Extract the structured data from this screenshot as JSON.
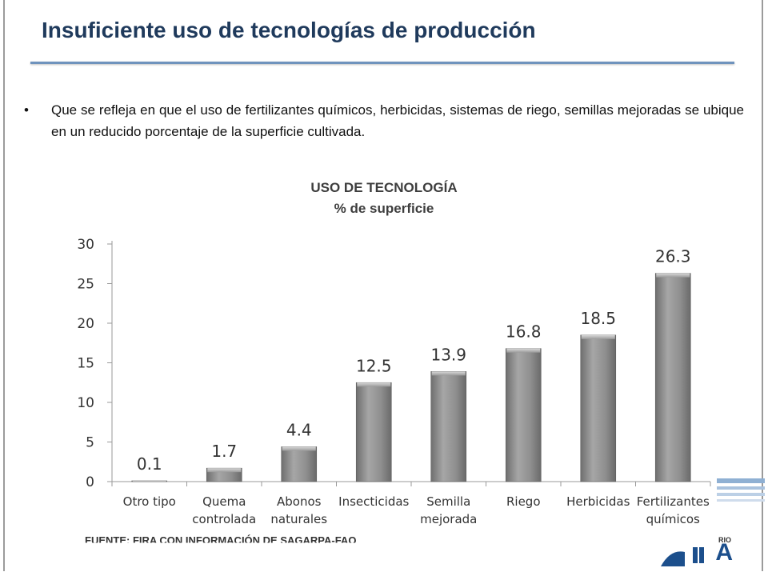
{
  "slide": {
    "title": "Insuficiente uso de tecnologías de producción",
    "bullet_symbol": "•",
    "bullet_text": "Que se refleja en que el uso de fertilizantes químicos, herbicidas, sistemas de riego, semillas mejoradas se ubique en un reducido porcentaje de la superficie cultivada.",
    "source": "FUENTE: FIRA CON INFORMACIÓN DE SAGARPA-FAO",
    "logo_text": "A",
    "logo_small_text": "RIO"
  },
  "chart_data": {
    "type": "bar",
    "title": "USO DE TECNOLOGÍA",
    "subtitle": "% de superficie",
    "categories": [
      [
        "Otro tipo"
      ],
      [
        "Quema",
        "controlada"
      ],
      [
        "Abonos",
        "naturales"
      ],
      [
        "Insecticidas"
      ],
      [
        "Semilla",
        "mejorada"
      ],
      [
        "Riego"
      ],
      [
        "Herbicidas"
      ],
      [
        "Fertilizantes",
        "químicos"
      ]
    ],
    "values": [
      0.1,
      1.7,
      4.4,
      12.5,
      13.9,
      16.8,
      18.5,
      26.3
    ],
    "value_labels": [
      "0.1",
      "1.7",
      "4.4",
      "12.5",
      "13.9",
      "16.8",
      "18.5",
      "26.3"
    ],
    "ylim": [
      0,
      30
    ],
    "yticks": [
      0,
      5,
      10,
      15,
      20,
      25,
      30
    ],
    "bar_color": "#8c8c8c",
    "grid": false,
    "legend": "none"
  }
}
